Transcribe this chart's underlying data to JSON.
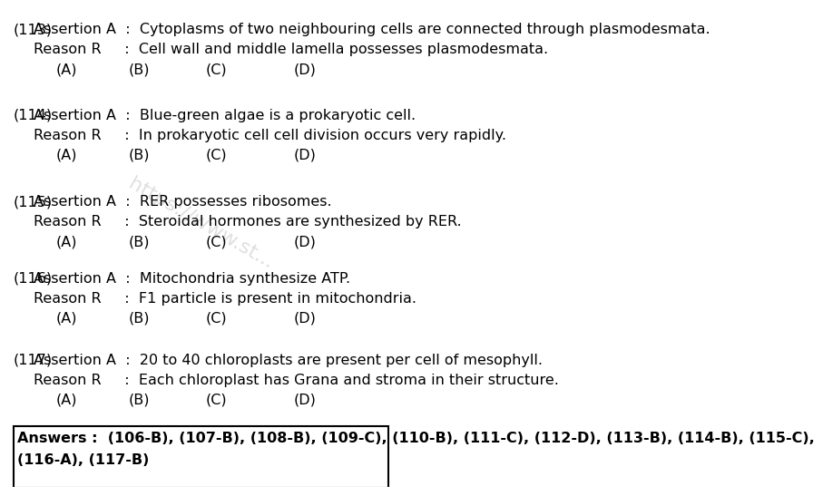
{
  "bg_color": "#ffffff",
  "border_color": "#000000",
  "text_color": "#000000",
  "questions": [
    {
      "num": "(113)",
      "assertion": "Assertion A  :  Cytoplasms of two neighbouring cells are connected through plasmodesmata.",
      "reason": "Reason R     :  Cell wall and middle lamella possesses plasmodesmata.",
      "options": [
        "(A)",
        "(B)",
        "(C)",
        "(D)"
      ]
    },
    {
      "num": "(114)",
      "assertion": "Assertion A  :  Blue-green algae is a prokaryotic cell.",
      "reason": "Reason R     :  In prokaryotic cell cell division occurs very rapidly.",
      "options": [
        "(A)",
        "(B)",
        "(C)",
        "(D)"
      ]
    },
    {
      "num": "(115)",
      "assertion": "Assertion A  :  RER possesses ribosomes.",
      "reason": "Reason R     :  Steroidal hormones are synthesized by RER.",
      "options": [
        "(A)",
        "(B)",
        "(C)",
        "(D)"
      ]
    },
    {
      "num": "(116)",
      "assertion": "Assertion A  :  Mitochondria synthesize ATP.",
      "reason": "Reason R     :  F1 particle is present in mitochondria.",
      "options": [
        "(A)",
        "(B)",
        "(C)",
        "(D)"
      ]
    },
    {
      "num": "(117)",
      "assertion": "Assertion A  :  20 to 40 chloroplasts are present per cell of mesophyll.",
      "reason": "Reason R     :  Each chloroplast has Grana and stroma in their structure.",
      "options": [
        "(A)",
        "(B)",
        "(C)",
        "(D)"
      ]
    }
  ],
  "answers_line1": "Answers :  (106-B), (107-B), (108-B), (109-C), (110-B), (111-C), (112-D), (113-B), (114-B), (115-C),",
  "answers_line2": "(116-A), (117-B)",
  "watermark": "https://www.st...",
  "font_size_main": 11.5,
  "font_size_answers": 11.5,
  "font_family": "DejaVu Sans"
}
